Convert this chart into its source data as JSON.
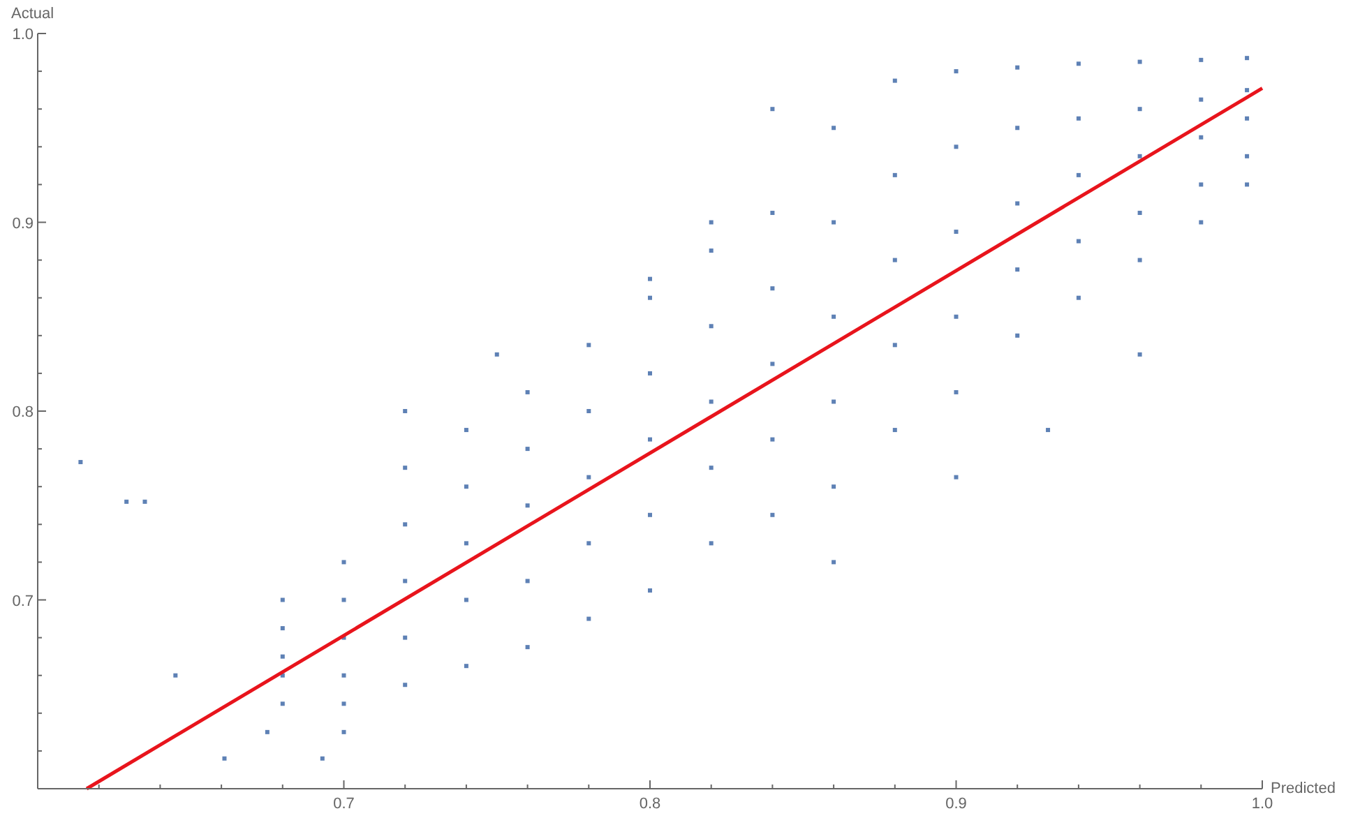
{
  "chart_data": {
    "type": "scatter",
    "xlabel": "Predicted",
    "ylabel": "Actual",
    "xlim": [
      0.6,
      1.0
    ],
    "ylim": [
      0.6,
      1.0
    ],
    "xticks": [
      {
        "value": 0.62,
        "label": null
      },
      {
        "value": 0.64,
        "label": null
      },
      {
        "value": 0.66,
        "label": null
      },
      {
        "value": 0.68,
        "label": null
      },
      0.7,
      {
        "value": 0.72,
        "label": null
      },
      {
        "value": 0.74,
        "label": null
      },
      {
        "value": 0.76,
        "label": null
      },
      {
        "value": 0.78,
        "label": null
      },
      0.8,
      {
        "value": 0.82,
        "label": null
      },
      {
        "value": 0.84,
        "label": null
      },
      {
        "value": 0.86,
        "label": null
      },
      {
        "value": 0.88,
        "label": null
      },
      0.9,
      {
        "value": 0.92,
        "label": null
      },
      {
        "value": 0.94,
        "label": null
      },
      {
        "value": 0.96,
        "label": null
      },
      {
        "value": 0.98,
        "label": null
      },
      {
        "value": 1.0,
        "label": "1.0"
      }
    ],
    "yticks": [
      {
        "value": 0.62,
        "label": null
      },
      {
        "value": 0.64,
        "label": null
      },
      {
        "value": 0.66,
        "label": null
      },
      {
        "value": 0.68,
        "label": null
      },
      0.7,
      {
        "value": 0.72,
        "label": null
      },
      {
        "value": 0.74,
        "label": null
      },
      {
        "value": 0.76,
        "label": null
      },
      {
        "value": 0.78,
        "label": null
      },
      0.8,
      {
        "value": 0.82,
        "label": null
      },
      {
        "value": 0.84,
        "label": null
      },
      {
        "value": 0.86,
        "label": null
      },
      {
        "value": 0.88,
        "label": null
      },
      0.9,
      {
        "value": 0.92,
        "label": null
      },
      {
        "value": 0.94,
        "label": null
      },
      {
        "value": 0.96,
        "label": null
      },
      {
        "value": 0.98,
        "label": null
      },
      {
        "value": 1.0,
        "label": "1.0"
      }
    ],
    "grid": false,
    "series": [
      {
        "marker": "square",
        "color": "#5e81b5",
        "x": [
          0.68,
          0.68,
          0.68,
          0.68,
          0.68,
          0.7,
          0.7,
          0.7,
          0.7,
          0.7,
          0.72,
          0.72,
          0.72,
          0.72,
          0.72,
          0.74,
          0.74,
          0.74,
          0.74,
          0.74,
          0.76,
          0.76,
          0.76,
          0.76,
          0.76,
          0.78,
          0.78,
          0.78,
          0.78,
          0.78,
          0.8,
          0.8,
          0.8,
          0.8,
          0.8,
          0.82,
          0.82,
          0.82,
          0.82,
          0.82,
          0.84,
          0.84,
          0.84,
          0.84,
          0.84,
          0.86,
          0.86,
          0.86,
          0.86,
          0.86,
          0.88,
          0.88,
          0.88,
          0.88,
          0.88,
          0.9,
          0.9,
          0.9,
          0.9,
          0.9,
          0.92,
          0.92,
          0.92,
          0.92,
          0.92,
          0.94,
          0.94,
          0.94,
          0.94,
          0.94,
          0.96,
          0.96,
          0.96,
          0.96,
          0.96,
          0.98,
          0.98,
          0.98,
          0.98,
          0.98,
          0.995,
          0.995,
          0.995,
          0.995,
          0.995,
          0.614,
          0.629,
          0.635,
          0.645,
          0.661,
          0.675,
          0.693,
          0.7,
          0.72,
          0.75,
          0.8,
          0.82,
          0.84,
          0.86,
          0.9,
          0.93,
          0.96
        ],
        "values": [
          0.7,
          0.685,
          0.67,
          0.66,
          0.645,
          0.72,
          0.7,
          0.68,
          0.66,
          0.645,
          0.77,
          0.74,
          0.71,
          0.68,
          0.655,
          0.79,
          0.76,
          0.73,
          0.7,
          0.665,
          0.81,
          0.78,
          0.75,
          0.71,
          0.675,
          0.835,
          0.8,
          0.765,
          0.73,
          0.69,
          0.86,
          0.82,
          0.785,
          0.745,
          0.705,
          0.885,
          0.845,
          0.805,
          0.77,
          0.73,
          0.905,
          0.865,
          0.825,
          0.785,
          0.745,
          0.95,
          0.9,
          0.85,
          0.805,
          0.76,
          0.975,
          0.925,
          0.88,
          0.835,
          0.79,
          0.98,
          0.94,
          0.895,
          0.85,
          0.81,
          0.982,
          0.95,
          0.91,
          0.875,
          0.84,
          0.984,
          0.955,
          0.925,
          0.89,
          0.86,
          0.985,
          0.96,
          0.935,
          0.905,
          0.88,
          0.986,
          0.965,
          0.945,
          0.92,
          0.9,
          0.987,
          0.97,
          0.955,
          0.935,
          0.92,
          0.773,
          0.752,
          0.752,
          0.66,
          0.616,
          0.63,
          0.616,
          0.63,
          0.8,
          0.83,
          0.87,
          0.9,
          0.96,
          0.72,
          0.765,
          0.79,
          0.83
        ]
      },
      {
        "type": "line",
        "color": "#e8141c",
        "x": [
          0.616,
          1.0
        ],
        "values": [
          0.6,
          0.971
        ]
      }
    ]
  }
}
